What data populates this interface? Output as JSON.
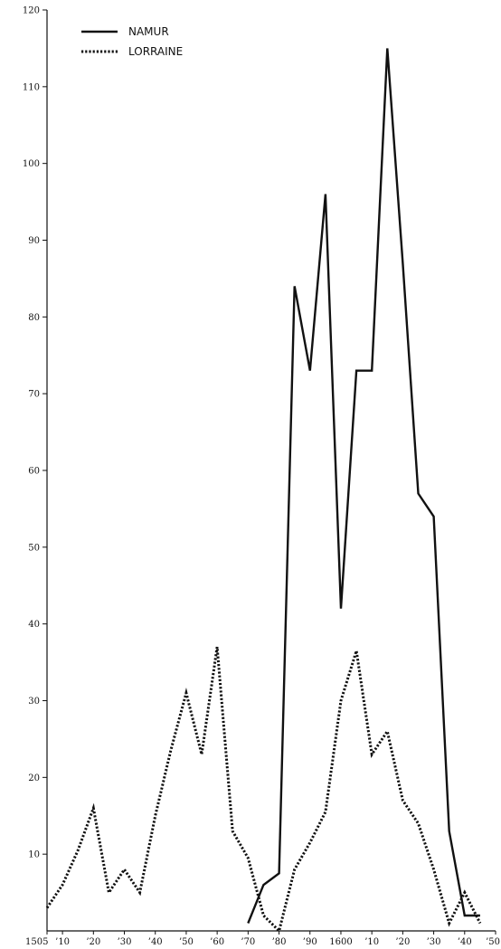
{
  "chart_data": {
    "type": "line",
    "title": "",
    "xlabel": "",
    "ylabel": "",
    "xlim": [
      1505,
      1650
    ],
    "ylim": [
      0,
      120
    ],
    "grid": false,
    "legend_position": "top-left",
    "x_tick_values": [
      1505,
      1510,
      1520,
      1530,
      1540,
      1550,
      1560,
      1570,
      1580,
      1590,
      1600,
      1610,
      1620,
      1630,
      1640,
      1650
    ],
    "x_tick_labels": [
      "1505",
      "’10",
      "’20",
      "’30",
      "’40",
      "’50",
      "’60",
      "’70",
      "’80",
      "’90",
      "1600",
      "’10",
      "’20",
      "’30",
      "’40",
      "’50"
    ],
    "y_tick_values": [
      10,
      20,
      30,
      40,
      50,
      60,
      70,
      80,
      90,
      100,
      110,
      120
    ],
    "y_tick_labels": [
      "10",
      "20",
      "30",
      "40",
      "50",
      "60",
      "70",
      "80",
      "90",
      "100",
      "110",
      "120"
    ],
    "series": [
      {
        "name": "NAMUR",
        "style": "solid",
        "color": "#111111",
        "x": [
          1570,
          1575,
          1580,
          1585,
          1590,
          1595,
          1600,
          1605,
          1610,
          1615,
          1620,
          1625,
          1630,
          1635,
          1640,
          1645
        ],
        "y": [
          1,
          6,
          7.5,
          84,
          73,
          96,
          42,
          73,
          73,
          115,
          87,
          57,
          54,
          13,
          2,
          2
        ]
      },
      {
        "name": "LORRAINE",
        "style": "dotted",
        "color": "#111111",
        "x": [
          1505,
          1510,
          1515,
          1520,
          1525,
          1530,
          1535,
          1540,
          1545,
          1550,
          1555,
          1560,
          1565,
          1570,
          1575,
          1580,
          1585,
          1590,
          1595,
          1600,
          1605,
          1610,
          1615,
          1620,
          1625,
          1630,
          1635,
          1640,
          1645
        ],
        "y": [
          3,
          6,
          10.5,
          16,
          5,
          8,
          5,
          15,
          23.5,
          31,
          23,
          37,
          13,
          9.5,
          2,
          0,
          8,
          11.5,
          15.5,
          30,
          36.5,
          23,
          26,
          17,
          14,
          8,
          1,
          5,
          1
        ]
      }
    ]
  }
}
